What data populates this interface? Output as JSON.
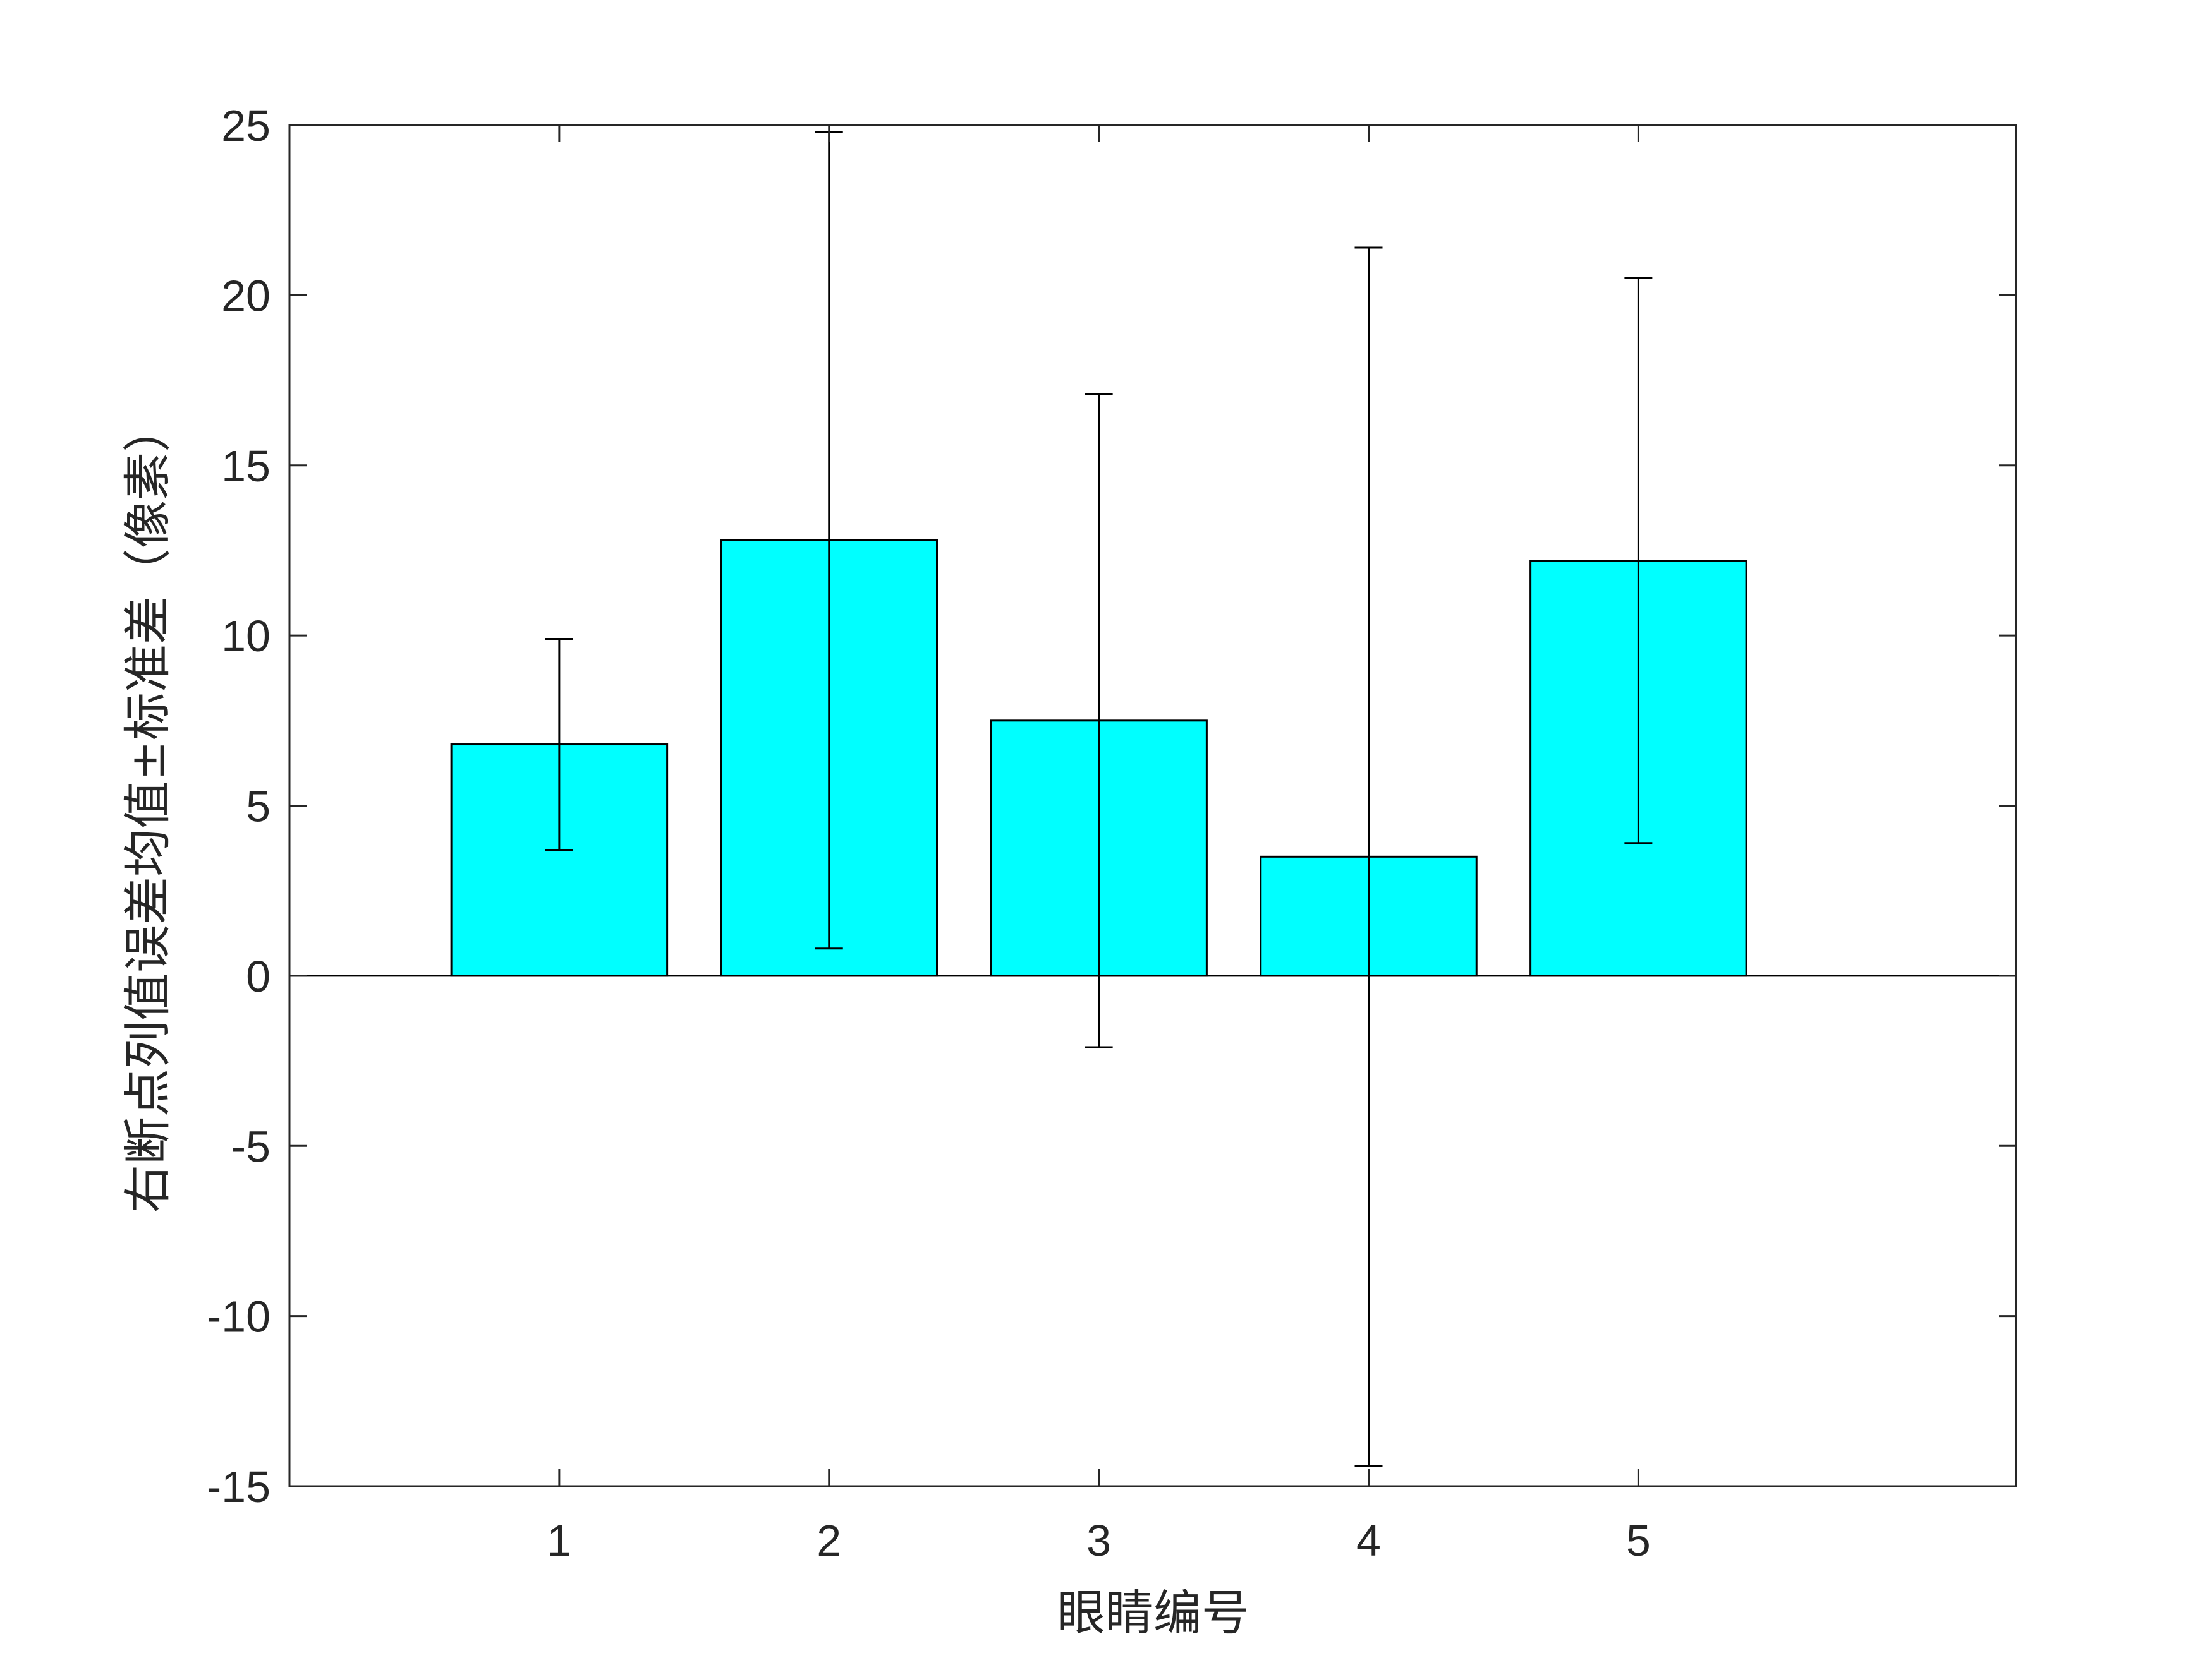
{
  "chart_data": {
    "type": "bar",
    "title": "",
    "xlabel": "眼睛编号",
    "ylabel": "右断点列值误差均值±标准差（像素）",
    "categories": [
      "1",
      "2",
      "3",
      "4",
      "5"
    ],
    "values": [
      6.8,
      12.8,
      7.5,
      3.5,
      12.2
    ],
    "error": [
      3.1,
      12.0,
      9.6,
      17.9,
      8.3
    ],
    "ylim": [
      -15,
      25
    ],
    "xlim": [
      0,
      6.4
    ],
    "yticks": [
      -15,
      -10,
      -5,
      0,
      5,
      10,
      15,
      20,
      25
    ],
    "ytick_labels": [
      "-15",
      "-10",
      "-5",
      "0",
      "5",
      "10",
      "15",
      "20",
      "25"
    ],
    "grid": false,
    "bar_color": "#00ffff",
    "edge_color": "#000000"
  }
}
